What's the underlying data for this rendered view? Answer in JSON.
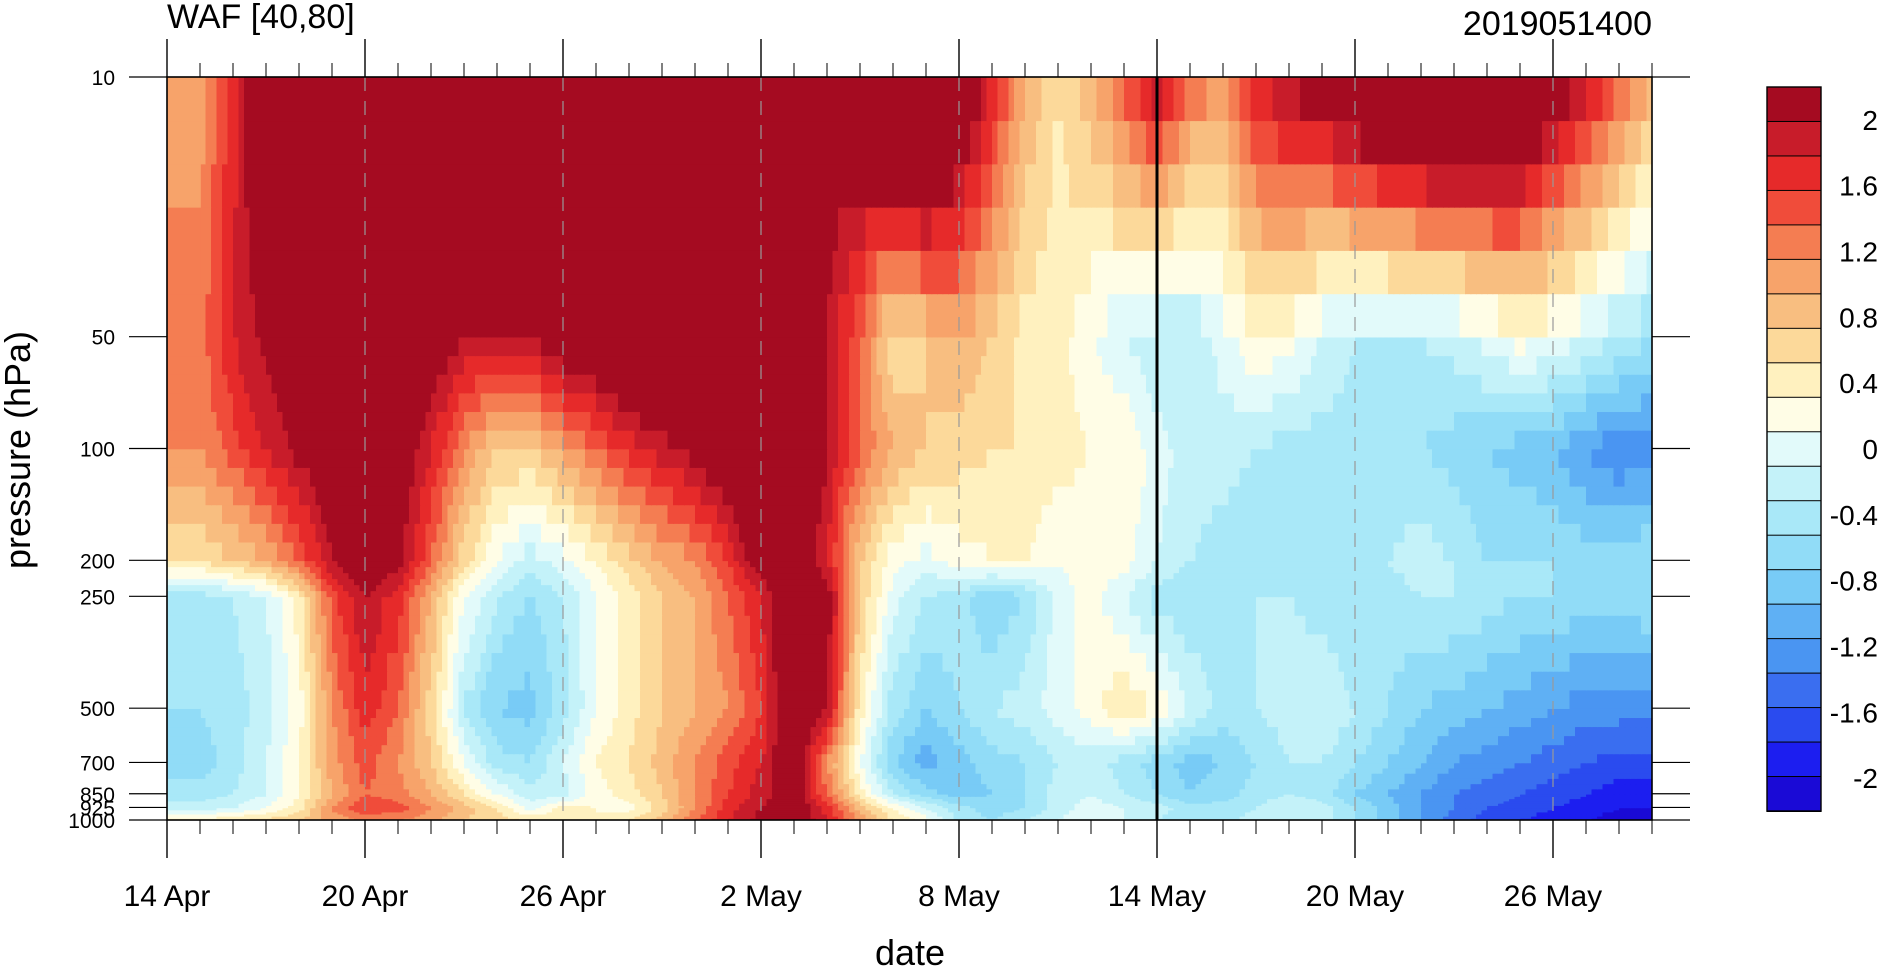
{
  "chart_data": {
    "type": "heatmap",
    "title_left": "WAF [40,80]",
    "title_right": "2019051400",
    "xlabel": "date",
    "ylabel": "pressure (hPa)",
    "y_scale": "log",
    "y_reversed": true,
    "xlim": [
      "2019-04-14",
      "2019-05-29"
    ],
    "ylim": [
      1000,
      10
    ],
    "x_ticks": [
      "14 Apr",
      "20 Apr",
      "26 Apr",
      "2 May",
      "8 May",
      "14 May",
      "20 May",
      "26 May"
    ],
    "x_tick_dates": [
      "2019-04-14",
      "2019-04-20",
      "2019-04-26",
      "2019-05-02",
      "2019-05-08",
      "2019-05-14",
      "2019-05-20",
      "2019-05-26"
    ],
    "y_ticks": [
      "10",
      "50",
      "100",
      "200",
      "250",
      "500",
      "700",
      "850",
      "925",
      "1000"
    ],
    "y_tick_values": [
      10,
      50,
      100,
      200,
      250,
      500,
      700,
      850,
      925,
      1000
    ],
    "reference_line_date": "2019-05-14",
    "colorbar": {
      "labels": [
        "2",
        "1.6",
        "1.2",
        "0.8",
        "0.4",
        "0",
        "-0.4",
        "-0.8",
        "-1.2",
        "-1.6",
        "-2"
      ],
      "label_values": [
        2,
        1.6,
        1.2,
        0.8,
        0.4,
        0,
        -0.4,
        -0.8,
        -1.2,
        -1.6,
        -2
      ],
      "min": -2.2,
      "max": 2.2,
      "levels": [
        -2,
        -1.8,
        -1.6,
        -1.4,
        -1.2,
        -1,
        -0.8,
        -0.6,
        -0.4,
        -0.2,
        0,
        0.2,
        0.4,
        0.6,
        0.8,
        1,
        1.2,
        1.4,
        1.6,
        1.8,
        2
      ],
      "colors": [
        "#1a0ad6",
        "#1c1ef0",
        "#2a4bef",
        "#3a6ef0",
        "#4a95f2",
        "#5fb0f4",
        "#78cbf6",
        "#91dcf7",
        "#a9e8f8",
        "#c4f2f9",
        "#e2fafa",
        "#fffde6",
        "#fff1bf",
        "#fcd99a",
        "#f8be80",
        "#f7a36a",
        "#f47d52",
        "#f04c3a",
        "#e62a2a",
        "#c81c2a",
        "#a50b21"
      ]
    },
    "series_description": [],
    "grid": {
      "x_days": [
        1,
        2,
        3,
        4,
        5,
        6,
        7,
        8,
        9,
        10,
        11,
        12,
        13,
        14,
        15,
        16,
        17,
        18,
        19,
        20,
        21,
        22,
        23,
        24,
        25,
        26,
        27,
        28,
        29,
        30,
        31,
        32,
        33,
        34,
        35,
        36,
        37,
        38,
        39,
        40,
        41,
        42,
        43,
        44,
        45
      ],
      "p_levels": [
        1000,
        925,
        850,
        700,
        500,
        250,
        200,
        100,
        50,
        10
      ]
    },
    "values": [
      [
        0.3,
        0.4,
        0.5,
        0.6,
        0.9,
        1.0,
        1.0,
        0.9,
        0.6,
        0.5,
        0.4,
        0.3,
        0.2,
        0.4,
        0.7,
        1.2,
        1.6,
        1.9,
        2.1,
        1.6,
        1.0,
        0.4,
        0.1,
        -0.5,
        -0.6,
        -0.4,
        -0.2,
        0.0,
        -0.2,
        -0.4,
        -0.6,
        -0.5,
        -0.3,
        -0.2,
        -0.3,
        -0.6,
        -0.9,
        -1.2,
        -1.5,
        -1.7,
        -1.8,
        -1.9,
        -2.0,
        -2.1,
        -2.1
      ],
      [
        -0.3,
        -0.2,
        0.0,
        0.3,
        1.0,
        1.4,
        1.3,
        1.0,
        0.7,
        0.4,
        -0.1,
        0.3,
        0.2,
        0.1,
        0.5,
        1.0,
        1.5,
        1.8,
        2.1,
        1.5,
        0.7,
        0.2,
        -0.2,
        -0.5,
        -0.7,
        -0.6,
        -0.3,
        -0.1,
        -0.2,
        -0.3,
        -0.5,
        -0.5,
        -0.4,
        -0.2,
        -0.3,
        -0.6,
        -0.9,
        -1.2,
        -1.4,
        -1.6,
        -1.7,
        -1.8,
        -1.9,
        -2.0,
        -2.0
      ],
      [
        -0.5,
        -0.4,
        -0.2,
        0.2,
        0.8,
        1.2,
        1.1,
        0.8,
        0.4,
        0.0,
        -0.3,
        -0.3,
        0.1,
        0.3,
        0.6,
        1.0,
        1.4,
        1.7,
        2.0,
        1.2,
        0.3,
        -0.4,
        -0.7,
        -0.9,
        -0.8,
        -0.6,
        -0.3,
        -0.2,
        -0.4,
        -0.6,
        -0.8,
        -0.7,
        -0.5,
        -0.4,
        -0.5,
        -0.8,
        -1.0,
        -1.2,
        -1.4,
        -1.5,
        -1.6,
        -1.7,
        -1.8,
        -1.9,
        -1.9
      ],
      [
        -0.7,
        -0.5,
        -0.2,
        0.2,
        0.9,
        1.3,
        1.0,
        0.6,
        0.0,
        -0.5,
        -0.6,
        -0.2,
        0.2,
        0.4,
        0.7,
        1.0,
        1.3,
        1.6,
        2.1,
        1.0,
        0.0,
        -0.8,
        -1.1,
        -0.9,
        -0.7,
        -0.6,
        -0.4,
        -0.3,
        -0.5,
        -0.7,
        -0.9,
        -0.8,
        -0.6,
        -0.4,
        -0.4,
        -0.6,
        -0.8,
        -1.0,
        -1.2,
        -1.3,
        -1.4,
        -1.5,
        -1.6,
        -1.7,
        -1.7
      ],
      [
        -0.6,
        -0.5,
        -0.3,
        0.1,
        1.0,
        1.5,
        1.2,
        0.5,
        -0.4,
        -0.8,
        -0.9,
        -0.5,
        0.0,
        0.3,
        0.6,
        0.8,
        1.0,
        1.4,
        2.3,
        1.8,
        0.3,
        -0.5,
        -0.8,
        -0.6,
        -0.4,
        -0.3,
        -0.1,
        0.1,
        0.4,
        0.2,
        -0.2,
        -0.5,
        -0.4,
        -0.3,
        -0.2,
        -0.4,
        -0.6,
        -0.8,
        -0.9,
        -1.0,
        -1.1,
        -1.2,
        -1.3,
        -1.3,
        -1.3
      ],
      [
        -0.5,
        -0.4,
        -0.2,
        0.3,
        1.3,
        1.8,
        1.5,
        0.8,
        0.0,
        -0.4,
        -0.6,
        -0.4,
        0.0,
        0.3,
        0.6,
        0.8,
        1.2,
        1.6,
        2.2,
        2.0,
        0.6,
        -0.1,
        -0.4,
        -0.5,
        -0.8,
        -0.6,
        -0.1,
        0.1,
        -0.2,
        -0.5,
        -0.6,
        -0.5,
        -0.4,
        -0.4,
        -0.5,
        -0.6,
        -0.5,
        -0.4,
        -0.4,
        -0.5,
        -0.6,
        -0.6,
        -0.7,
        -0.7,
        -0.6
      ],
      [
        0.4,
        0.6,
        0.8,
        1.2,
        1.8,
        2.1,
        1.9,
        1.2,
        0.5,
        0.0,
        -0.3,
        -0.1,
        0.2,
        0.5,
        0.8,
        1.0,
        1.4,
        2.0,
        2.1,
        1.6,
        0.6,
        0.1,
        -0.1,
        0.1,
        0.2,
        0.2,
        0.0,
        0.1,
        0.1,
        -0.2,
        -0.4,
        -0.5,
        -0.6,
        -0.5,
        -0.4,
        -0.5,
        -0.4,
        -0.3,
        -0.4,
        -0.6,
        -0.6,
        -0.6,
        -0.7,
        -0.7,
        -0.6
      ],
      [
        1.0,
        1.3,
        1.6,
        1.9,
        2.1,
        2.3,
        2.1,
        1.6,
        1.0,
        0.6,
        0.6,
        0.9,
        1.2,
        1.5,
        1.7,
        1.9,
        2.2,
        2.6,
        2.5,
        1.8,
        1.2,
        0.8,
        0.6,
        0.5,
        0.4,
        0.4,
        0.3,
        0.2,
        0.2,
        -0.1,
        -0.3,
        -0.3,
        -0.4,
        -0.5,
        -0.5,
        -0.5,
        -0.5,
        -0.6,
        -0.7,
        -0.8,
        -0.9,
        -1.0,
        -1.2,
        -1.4,
        -1.3
      ],
      [
        1.1,
        1.6,
        1.9,
        2.1,
        2.5,
        2.7,
        2.6,
        2.1,
        1.8,
        1.7,
        1.8,
        2.1,
        2.2,
        2.4,
        2.6,
        2.8,
        2.9,
        2.7,
        2.3,
        1.8,
        1.2,
        0.4,
        0.6,
        0.8,
        0.6,
        0.3,
        0.3,
        0.0,
        -0.2,
        -0.4,
        -0.4,
        -0.1,
        0.2,
        0.1,
        -0.2,
        -0.4,
        -0.4,
        -0.4,
        -0.3,
        -0.1,
        0.1,
        0.0,
        -0.2,
        -0.4,
        -0.6
      ],
      [
        0.9,
        1.5,
        2.4,
        2.8,
        3.0,
        3.1,
        3.1,
        3.0,
        3.0,
        3.0,
        3.0,
        3.0,
        3.0,
        3.0,
        3.0,
        2.4,
        1.9,
        1.8,
        1.9,
        2.0,
        2.3,
        2.8,
        3.1,
        2.4,
        1.6,
        0.8,
        0.4,
        0.8,
        1.3,
        1.9,
        1.2,
        1.0,
        1.6,
        1.9,
        2.1,
        2.5,
        2.8,
        3.0,
        3.1,
        3.0,
        2.8,
        2.2,
        1.8,
        1.3,
        0.8
      ]
    ]
  }
}
